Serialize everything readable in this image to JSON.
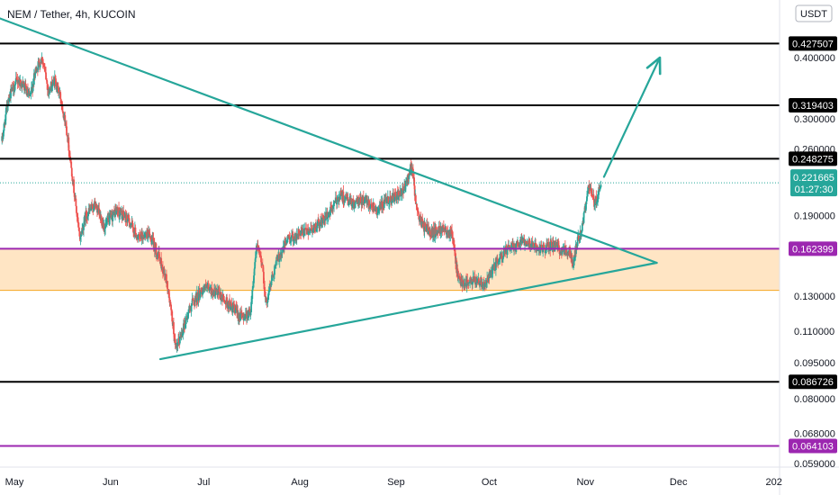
{
  "header": {
    "title": "NEM / Tether, 4h, KUCOIN",
    "currency_button": "USDT"
  },
  "colors": {
    "background": "#ffffff",
    "candle_up": "#26a69a",
    "candle_down": "#ef5350",
    "trendline": "#26a69a",
    "support_zone": "#ffe5c4",
    "support_zone_border": "#f5a623",
    "level_black": "#000000",
    "level_purple": "#9c27b0",
    "price_line": "#26a69a"
  },
  "y_axis": {
    "ticks": [
      "0.400000",
      "0.300000",
      "0.260000",
      "0.190000",
      "0.130000",
      "0.110000",
      "0.095000",
      "0.080000",
      "0.068000",
      "0.059000"
    ]
  },
  "x_axis": {
    "ticks": [
      "May",
      "Jun",
      "Jul",
      "Aug",
      "Sep",
      "Oct",
      "Nov",
      "Dec",
      "202"
    ]
  },
  "levels": [
    {
      "label": "0.427507",
      "color": "black",
      "value": 0.427507
    },
    {
      "label": "0.319403",
      "color": "black",
      "value": 0.319403
    },
    {
      "label": "0.248275",
      "color": "black",
      "value": 0.248275
    },
    {
      "label": "0.162399",
      "color": "purple",
      "value": 0.162399
    },
    {
      "label": "0.086726",
      "color": "black",
      "value": 0.086726
    },
    {
      "label": "0.064103",
      "color": "purple",
      "value": 0.064103
    }
  ],
  "current_price": {
    "price": "0.221665",
    "countdown": "01:27:30",
    "value": 0.221665
  },
  "chart_data": {
    "type": "candlestick",
    "title": "NEM / Tether, 4h, KUCOIN",
    "y_scale": "log",
    "ylim": [
      0.0565,
      0.49
    ],
    "x_range": [
      "2021-04-27",
      "2021-12-31"
    ],
    "support_zone": [
      0.1335,
      0.1624
    ],
    "close_path": [
      [
        "2021-04-27",
        0.27
      ],
      [
        "2021-04-29",
        0.33
      ],
      [
        "2021-05-02",
        0.36
      ],
      [
        "2021-05-04",
        0.35
      ],
      [
        "2021-05-06",
        0.33
      ],
      [
        "2021-05-08",
        0.38
      ],
      [
        "2021-05-10",
        0.4
      ],
      [
        "2021-05-12",
        0.34
      ],
      [
        "2021-05-14",
        0.36
      ],
      [
        "2021-05-16",
        0.33
      ],
      [
        "2021-05-18",
        0.28
      ],
      [
        "2021-05-20",
        0.22
      ],
      [
        "2021-05-22",
        0.17
      ],
      [
        "2021-05-24",
        0.19
      ],
      [
        "2021-05-27",
        0.2
      ],
      [
        "2021-05-30",
        0.18
      ],
      [
        "2021-06-03",
        0.195
      ],
      [
        "2021-06-07",
        0.185
      ],
      [
        "2021-06-10",
        0.17
      ],
      [
        "2021-06-13",
        0.175
      ],
      [
        "2021-06-16",
        0.16
      ],
      [
        "2021-06-19",
        0.14
      ],
      [
        "2021-06-21",
        0.115
      ],
      [
        "2021-06-22",
        0.1
      ],
      [
        "2021-06-24",
        0.11
      ],
      [
        "2021-06-27",
        0.125
      ],
      [
        "2021-07-01",
        0.135
      ],
      [
        "2021-07-05",
        0.132
      ],
      [
        "2021-07-09",
        0.125
      ],
      [
        "2021-07-13",
        0.118
      ],
      [
        "2021-07-16",
        0.12
      ],
      [
        "2021-07-18",
        0.165
      ],
      [
        "2021-07-20",
        0.15
      ],
      [
        "2021-07-21",
        0.125
      ],
      [
        "2021-07-24",
        0.15
      ],
      [
        "2021-07-28",
        0.17
      ],
      [
        "2021-08-02",
        0.175
      ],
      [
        "2021-08-06",
        0.18
      ],
      [
        "2021-08-10",
        0.19
      ],
      [
        "2021-08-14",
        0.21
      ],
      [
        "2021-08-18",
        0.2
      ],
      [
        "2021-08-22",
        0.205
      ],
      [
        "2021-08-26",
        0.195
      ],
      [
        "2021-08-30",
        0.205
      ],
      [
        "2021-09-03",
        0.21
      ],
      [
        "2021-09-06",
        0.24
      ],
      [
        "2021-09-08",
        0.19
      ],
      [
        "2021-09-10",
        0.18
      ],
      [
        "2021-09-13",
        0.175
      ],
      [
        "2021-09-16",
        0.18
      ],
      [
        "2021-09-19",
        0.175
      ],
      [
        "2021-09-21",
        0.14
      ],
      [
        "2021-09-24",
        0.138
      ],
      [
        "2021-09-27",
        0.14
      ],
      [
        "2021-09-30",
        0.138
      ],
      [
        "2021-10-03",
        0.15
      ],
      [
        "2021-10-06",
        0.16
      ],
      [
        "2021-10-09",
        0.165
      ],
      [
        "2021-10-12",
        0.17
      ],
      [
        "2021-10-15",
        0.165
      ],
      [
        "2021-10-18",
        0.162
      ],
      [
        "2021-10-21",
        0.165
      ],
      [
        "2021-10-24",
        0.162
      ],
      [
        "2021-10-27",
        0.16
      ],
      [
        "2021-10-28",
        0.15
      ],
      [
        "2021-10-29",
        0.165
      ],
      [
        "2021-10-31",
        0.18
      ],
      [
        "2021-11-02",
        0.22
      ],
      [
        "2021-11-04",
        0.2
      ],
      [
        "2021-11-06",
        0.221665
      ]
    ],
    "drawings": [
      {
        "type": "trendline",
        "from": [
          "2021-04-23",
          0.49
        ],
        "to": [
          "2021-11-24",
          0.152
        ]
      },
      {
        "type": "trendline",
        "from": [
          "2021-06-17",
          0.0965
        ],
        "to": [
          "2021-11-24",
          0.152
        ]
      },
      {
        "type": "arrow",
        "from": [
          "2021-11-07",
          0.228
        ],
        "to": [
          "2021-11-25",
          0.4
        ]
      }
    ]
  }
}
